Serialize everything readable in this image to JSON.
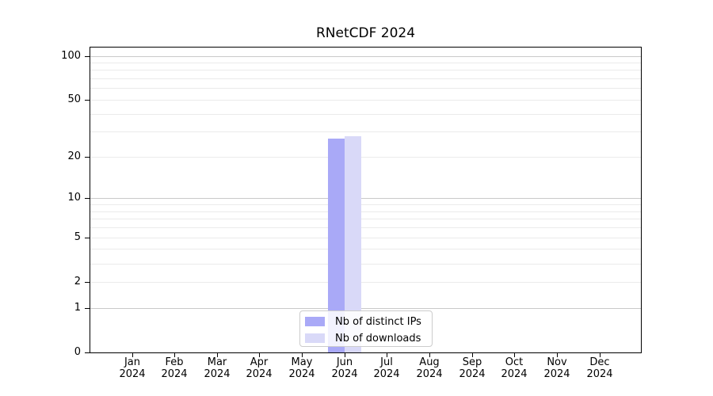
{
  "chart_data": {
    "type": "bar",
    "title": "RNetCDF 2024",
    "categories": [
      "Jan 2024",
      "Feb 2024",
      "Mar 2024",
      "Apr 2024",
      "May 2024",
      "Jun 2024",
      "Jul 2024",
      "Aug 2024",
      "Sep 2024",
      "Oct 2024",
      "Nov 2024",
      "Dec 2024"
    ],
    "series": [
      {
        "name": "Nb of distinct IPs",
        "color": "#a9a9f7",
        "values": [
          0,
          0,
          0,
          0,
          0,
          27,
          0,
          0,
          0,
          0,
          0,
          0
        ]
      },
      {
        "name": "Nb of downloads",
        "color": "#d9d9f8",
        "values": [
          0,
          0,
          0,
          0,
          0,
          28,
          0,
          0,
          0,
          0,
          0,
          0
        ]
      }
    ],
    "xlabel": "",
    "ylabel": "",
    "yscale": "log1p",
    "ylim": [
      0,
      114
    ],
    "yticks": [
      {
        "value": 0,
        "label": "0"
      },
      {
        "value": 1,
        "label": "1"
      },
      {
        "value": 2,
        "label": "2"
      },
      {
        "value": 5,
        "label": "5"
      },
      {
        "value": 10,
        "label": "10"
      },
      {
        "value": 20,
        "label": "20"
      },
      {
        "value": 50,
        "label": "50"
      },
      {
        "value": 100,
        "label": "100"
      }
    ],
    "major_gridline_values": [
      1,
      10,
      100
    ],
    "minor_gridline_values": [
      2,
      3,
      4,
      5,
      6,
      7,
      8,
      9,
      20,
      30,
      40,
      50,
      60,
      70,
      80,
      90
    ],
    "grid": true,
    "legend": {
      "position": "lower center",
      "items": [
        "Nb of distinct IPs",
        "Nb of downloads"
      ]
    }
  },
  "colors": {
    "background": "#ffffff",
    "axis": "#000000",
    "text": "#000000",
    "major_grid": "#c9c9c9",
    "minor_grid": "#ebebeb",
    "legend_border": "#cccccc"
  }
}
